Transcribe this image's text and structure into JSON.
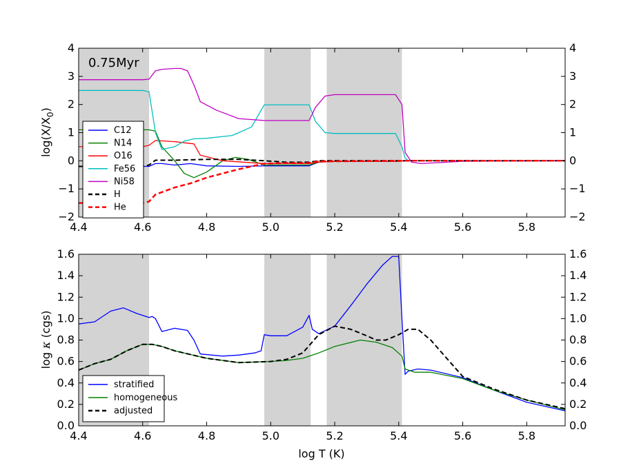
{
  "chart_data": [
    {
      "type": "line",
      "annotation": "0.75Myr",
      "xlabel": "log T (K)",
      "ylabel": "log(X/X0)",
      "ylabel_main": "log(X/X",
      "ylabel_sub": "0",
      "ylabel_end": ")",
      "xlim": [
        4.4,
        5.92
      ],
      "ylim": [
        -2,
        4
      ],
      "xticks": [
        4.4,
        4.6,
        4.8,
        5.0,
        5.2,
        5.4,
        5.6,
        5.8
      ],
      "xtick_labels": [
        "4.4",
        "4.6",
        "4.8",
        "5.0",
        "5.2",
        "5.4",
        "5.6",
        "5.8"
      ],
      "yticks": [
        -2,
        -1,
        0,
        1,
        2,
        3,
        4
      ],
      "ytick_labels": [
        "−2",
        "−1",
        "0",
        "1",
        "2",
        "3",
        "4"
      ],
      "shaded_bands": [
        [
          4.4,
          4.62
        ],
        [
          4.98,
          5.125
        ],
        [
          5.175,
          5.41
        ]
      ],
      "legend_position": "lower-left",
      "series": [
        {
          "name": "C12",
          "color": "#0000ff",
          "dash": "solid",
          "x": [
            4.4,
            4.6,
            4.62,
            4.64,
            4.66,
            4.7,
            4.75,
            4.8,
            4.9,
            4.98,
            5.05,
            5.12,
            5.15,
            5.2,
            5.4,
            5.42,
            5.5,
            5.92
          ],
          "y": [
            -0.2,
            -0.2,
            -0.2,
            -0.1,
            -0.1,
            -0.15,
            -0.1,
            -0.18,
            -0.2,
            -0.18,
            -0.18,
            -0.18,
            -0.05,
            -0.02,
            -0.02,
            0.0,
            0.0,
            0.0
          ]
        },
        {
          "name": "N14",
          "color": "#008000",
          "dash": "solid",
          "x": [
            4.4,
            4.6,
            4.62,
            4.64,
            4.66,
            4.7,
            4.73,
            4.76,
            4.8,
            4.85,
            4.89,
            4.93,
            4.98,
            5.05,
            5.12,
            5.15,
            5.2,
            5.4,
            5.42,
            5.92
          ],
          "y": [
            1.1,
            1.1,
            1.1,
            1.05,
            0.5,
            0.0,
            -0.45,
            -0.6,
            -0.4,
            0.0,
            0.12,
            0.05,
            -0.15,
            -0.15,
            -0.15,
            -0.05,
            -0.02,
            -0.02,
            0.0,
            0.0
          ]
        },
        {
          "name": "O16",
          "color": "#ff0000",
          "dash": "solid",
          "x": [
            4.4,
            4.6,
            4.62,
            4.64,
            4.7,
            4.76,
            4.78,
            4.85,
            4.98,
            5.05,
            5.12,
            5.15,
            5.2,
            5.4,
            5.42,
            5.92
          ],
          "y": [
            0.5,
            0.5,
            0.55,
            0.72,
            0.68,
            0.6,
            0.2,
            0.0,
            -0.1,
            -0.1,
            -0.1,
            -0.05,
            -0.02,
            -0.02,
            0.0,
            0.0
          ]
        },
        {
          "name": "Fe56",
          "color": "#00bfbf",
          "dash": "solid",
          "x": [
            4.4,
            4.6,
            4.62,
            4.64,
            4.66,
            4.7,
            4.73,
            4.76,
            4.8,
            4.88,
            4.94,
            4.98,
            5.05,
            5.12,
            5.14,
            5.17,
            5.2,
            5.39,
            5.41,
            5.42,
            5.43,
            5.92
          ],
          "y": [
            2.5,
            2.5,
            2.45,
            1.0,
            0.4,
            0.5,
            0.7,
            0.78,
            0.8,
            0.9,
            1.2,
            1.99,
            1.99,
            1.99,
            1.4,
            1.0,
            0.97,
            0.97,
            0.5,
            0.1,
            0.0,
            0.0
          ]
        },
        {
          "name": "Ni58",
          "color": "#bf00bf",
          "dash": "solid",
          "x": [
            4.4,
            4.6,
            4.62,
            4.64,
            4.66,
            4.7,
            4.72,
            4.74,
            4.76,
            4.78,
            4.83,
            4.9,
            4.98,
            5.05,
            5.12,
            5.14,
            5.17,
            5.2,
            5.39,
            5.41,
            5.42,
            5.44,
            5.47,
            5.55,
            5.6,
            5.92
          ],
          "y": [
            2.88,
            2.88,
            2.9,
            3.2,
            3.25,
            3.28,
            3.28,
            3.2,
            2.7,
            2.1,
            1.8,
            1.5,
            1.43,
            1.43,
            1.43,
            1.9,
            2.3,
            2.35,
            2.35,
            2.0,
            0.3,
            -0.05,
            -0.1,
            -0.05,
            -0.02,
            0.0
          ]
        },
        {
          "name": "H",
          "color": "#000000",
          "dash": "dashed",
          "x": [
            4.4,
            4.6,
            4.62,
            4.64,
            4.7,
            4.8,
            4.9,
            4.98,
            5.05,
            5.12,
            5.15,
            5.2,
            5.4,
            5.92
          ],
          "y": [
            -0.2,
            -0.2,
            -0.15,
            0.02,
            0.02,
            0.05,
            0.05,
            0.0,
            -0.05,
            -0.05,
            0.0,
            0.0,
            0.0,
            0.0
          ]
        },
        {
          "name": "He",
          "color": "#ff0000",
          "dash": "dashed",
          "x": [
            4.4,
            4.6,
            4.62,
            4.64,
            4.7,
            4.75,
            4.8,
            4.9,
            4.98,
            5.05,
            5.12,
            5.15,
            5.2,
            5.42,
            5.92
          ],
          "y": [
            -1.5,
            -1.5,
            -1.45,
            -1.2,
            -0.95,
            -0.8,
            -0.6,
            -0.3,
            -0.1,
            -0.08,
            -0.08,
            -0.02,
            -0.02,
            0.0,
            0.0
          ]
        }
      ]
    },
    {
      "type": "line",
      "xlabel": "log T (K)",
      "ylabel": "log κ (cgs)",
      "ylabel_main": "log ",
      "ylabel_kappa": "κ",
      "ylabel_end": " (cgs)",
      "xlim": [
        4.4,
        5.92
      ],
      "ylim": [
        0.0,
        1.6
      ],
      "xticks": [
        4.4,
        4.6,
        4.8,
        5.0,
        5.2,
        5.4,
        5.6,
        5.8
      ],
      "xtick_labels": [
        "4.4",
        "4.6",
        "4.8",
        "5.0",
        "5.2",
        "5.4",
        "5.6",
        "5.8"
      ],
      "yticks": [
        0.0,
        0.2,
        0.4,
        0.6,
        0.8,
        1.0,
        1.2,
        1.4,
        1.6
      ],
      "ytick_labels": [
        "0.0",
        "0.2",
        "0.4",
        "0.6",
        "0.8",
        "1.0",
        "1.2",
        "1.4",
        "1.6"
      ],
      "shaded_bands": [
        [
          4.4,
          4.62
        ],
        [
          4.98,
          5.125
        ],
        [
          5.175,
          5.41
        ]
      ],
      "legend_position": "lower-left",
      "series": [
        {
          "name": "stratified",
          "color": "#0000ff",
          "dash": "solid",
          "x": [
            4.4,
            4.45,
            4.5,
            4.54,
            4.58,
            4.62,
            4.63,
            4.64,
            4.66,
            4.7,
            4.74,
            4.76,
            4.78,
            4.85,
            4.9,
            4.95,
            4.97,
            4.98,
            5.0,
            5.05,
            5.1,
            5.12,
            5.13,
            5.15,
            5.2,
            5.25,
            5.3,
            5.35,
            5.38,
            5.4,
            5.41,
            5.42,
            5.43,
            5.46,
            5.5,
            5.6,
            5.7,
            5.8,
            5.92
          ],
          "y": [
            0.95,
            0.97,
            1.07,
            1.1,
            1.05,
            1.01,
            1.02,
            1.0,
            0.88,
            0.91,
            0.89,
            0.8,
            0.67,
            0.65,
            0.66,
            0.68,
            0.7,
            0.85,
            0.84,
            0.84,
            0.92,
            1.03,
            0.9,
            0.86,
            0.93,
            1.12,
            1.32,
            1.5,
            1.58,
            1.58,
            1.0,
            0.48,
            0.51,
            0.53,
            0.52,
            0.45,
            0.33,
            0.22,
            0.14
          ]
        },
        {
          "name": "homogeneous",
          "color": "#008000",
          "dash": "solid",
          "x": [
            4.4,
            4.45,
            4.5,
            4.55,
            4.6,
            4.63,
            4.66,
            4.7,
            4.8,
            4.9,
            5.0,
            5.05,
            5.1,
            5.15,
            5.2,
            5.28,
            5.33,
            5.38,
            5.41,
            5.42,
            5.45,
            5.5,
            5.6,
            5.7,
            5.8,
            5.92
          ],
          "y": [
            0.52,
            0.58,
            0.62,
            0.7,
            0.76,
            0.76,
            0.74,
            0.7,
            0.63,
            0.59,
            0.6,
            0.61,
            0.63,
            0.68,
            0.74,
            0.8,
            0.78,
            0.73,
            0.65,
            0.53,
            0.5,
            0.5,
            0.44,
            0.33,
            0.24,
            0.15
          ]
        },
        {
          "name": "adjusted",
          "color": "#000000",
          "dash": "dashed",
          "x": [
            4.4,
            4.45,
            4.5,
            4.55,
            4.6,
            4.63,
            4.66,
            4.7,
            4.8,
            4.9,
            5.0,
            5.05,
            5.1,
            5.15,
            5.2,
            5.25,
            5.3,
            5.33,
            5.36,
            5.4,
            5.43,
            5.46,
            5.5,
            5.55,
            5.6,
            5.7,
            5.8,
            5.92
          ],
          "y": [
            0.52,
            0.58,
            0.62,
            0.7,
            0.76,
            0.76,
            0.74,
            0.7,
            0.63,
            0.59,
            0.6,
            0.62,
            0.68,
            0.85,
            0.93,
            0.9,
            0.84,
            0.8,
            0.8,
            0.85,
            0.9,
            0.9,
            0.8,
            0.63,
            0.46,
            0.34,
            0.24,
            0.16
          ]
        }
      ]
    }
  ]
}
